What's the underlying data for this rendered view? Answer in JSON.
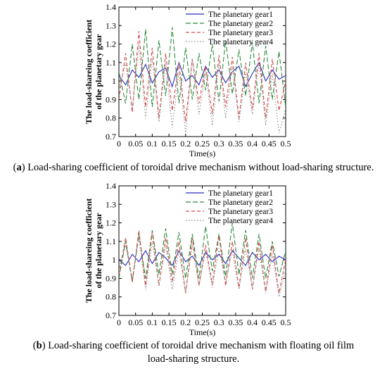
{
  "chart_data": [
    {
      "type": "line",
      "panel": "a",
      "title": "",
      "xlabel": "Time(s)",
      "ylabel": [
        "The load-shareing coefficient",
        "of the planetary gear"
      ],
      "xlim": [
        0,
        0.5
      ],
      "ylim": [
        0.7,
        1.4
      ],
      "xticks": [
        "0",
        "0.05",
        "0.1",
        "0.15",
        "0.2",
        "0.25",
        "0.3",
        "0.35",
        "0.4",
        "0.45",
        "0.5"
      ],
      "yticks": [
        "0.7",
        "0.8",
        "0.9",
        "1",
        "1.1",
        "1.2",
        "1.3",
        "1.4"
      ],
      "legend_position": "top-right",
      "grid": false,
      "series": [
        {
          "name": "The planetary gear1",
          "color": "#2b2bbf",
          "dash": "solid",
          "x": [
            0,
            0.02,
            0.04,
            0.06,
            0.08,
            0.1,
            0.12,
            0.14,
            0.16,
            0.18,
            0.2,
            0.22,
            0.24,
            0.26,
            0.28,
            0.3,
            0.32,
            0.34,
            0.36,
            0.38,
            0.4,
            0.42,
            0.44,
            0.46,
            0.48,
            0.5
          ],
          "values": [
            1.03,
            0.98,
            1.06,
            1.02,
            1.09,
            0.99,
            1.05,
            1.07,
            0.97,
            1.1,
            1.0,
            1.03,
            0.98,
            1.08,
            1.02,
            1.06,
            0.99,
            1.05,
            1.08,
            0.97,
            1.04,
            1.1,
            1.0,
            1.06,
            1.01,
            1.03
          ]
        },
        {
          "name": "The planetary gear2",
          "color": "#2e8b3e",
          "dash": "long-dash",
          "x": [
            0,
            0.02,
            0.04,
            0.06,
            0.08,
            0.1,
            0.12,
            0.14,
            0.16,
            0.18,
            0.2,
            0.22,
            0.24,
            0.26,
            0.28,
            0.3,
            0.32,
            0.34,
            0.36,
            0.38,
            0.4,
            0.42,
            0.44,
            0.46,
            0.48,
            0.5
          ],
          "values": [
            1.05,
            0.88,
            1.2,
            0.9,
            1.28,
            0.86,
            1.22,
            0.92,
            1.29,
            0.88,
            1.18,
            0.9,
            1.15,
            0.95,
            1.2,
            0.89,
            1.22,
            0.93,
            1.17,
            0.92,
            1.21,
            0.88,
            1.19,
            0.9,
            1.16,
            0.86
          ]
        },
        {
          "name": "The planetary gear3",
          "color": "#d44a4a",
          "dash": "dash",
          "x": [
            0,
            0.02,
            0.04,
            0.06,
            0.08,
            0.1,
            0.12,
            0.14,
            0.16,
            0.18,
            0.2,
            0.22,
            0.24,
            0.26,
            0.28,
            0.3,
            0.32,
            0.34,
            0.36,
            0.38,
            0.4,
            0.42,
            0.44,
            0.46,
            0.48,
            0.5
          ],
          "values": [
            0.9,
            1.15,
            0.83,
            1.27,
            0.86,
            1.18,
            0.8,
            1.15,
            0.84,
            1.1,
            0.78,
            1.12,
            0.88,
            1.08,
            0.82,
            1.14,
            0.86,
            1.13,
            0.8,
            1.1,
            0.85,
            1.15,
            0.8,
            1.12,
            0.84,
            1.0
          ]
        },
        {
          "name": "The planetary gear4",
          "color": "#888888",
          "dash": "dot",
          "x": [
            0,
            0.02,
            0.04,
            0.06,
            0.08,
            0.1,
            0.12,
            0.14,
            0.16,
            0.18,
            0.2,
            0.22,
            0.24,
            0.26,
            0.28,
            0.3,
            0.32,
            0.34,
            0.36,
            0.38,
            0.4,
            0.42,
            0.44,
            0.46,
            0.48,
            0.5
          ],
          "values": [
            0.95,
            1.1,
            0.85,
            1.2,
            0.8,
            1.12,
            0.78,
            1.1,
            0.75,
            1.05,
            0.72,
            1.12,
            0.82,
            1.05,
            0.76,
            1.1,
            0.8,
            1.08,
            0.78,
            1.05,
            0.82,
            1.1,
            0.76,
            1.04,
            0.72,
            0.85
          ]
        }
      ]
    },
    {
      "type": "line",
      "panel": "b",
      "title": "",
      "xlabel": "Time(s)",
      "ylabel": [
        "The load-shareing coefficient",
        "of the planetary gear"
      ],
      "xlim": [
        0,
        0.5
      ],
      "ylim": [
        0.7,
        1.4
      ],
      "xticks": [
        "0",
        "0.05",
        "0.1",
        "0.15",
        "0.2",
        "0.25",
        "0.3",
        "0.35",
        "0.4",
        "0.45",
        "0.5"
      ],
      "yticks": [
        "0.7",
        "0.8",
        "0.9",
        "1",
        "1.1",
        "1.2",
        "1.3",
        "1.4"
      ],
      "legend_position": "top-right",
      "grid": false,
      "series": [
        {
          "name": "The planetary gear1",
          "color": "#2b2bbf",
          "dash": "solid",
          "x": [
            0,
            0.02,
            0.04,
            0.06,
            0.08,
            0.1,
            0.12,
            0.14,
            0.16,
            0.18,
            0.2,
            0.22,
            0.24,
            0.26,
            0.28,
            0.3,
            0.32,
            0.34,
            0.36,
            0.38,
            0.4,
            0.42,
            0.44,
            0.46,
            0.48,
            0.5
          ],
          "values": [
            1.0,
            0.97,
            1.03,
            0.99,
            1.05,
            0.98,
            1.04,
            1.01,
            0.97,
            1.05,
            0.99,
            1.02,
            0.97,
            1.04,
            1.0,
            1.03,
            0.98,
            1.05,
            1.01,
            0.97,
            1.04,
            1.0,
            1.03,
            0.99,
            1.02,
            1.0
          ]
        },
        {
          "name": "The planetary gear2",
          "color": "#2e8b3e",
          "dash": "long-dash",
          "x": [
            0,
            0.02,
            0.04,
            0.06,
            0.08,
            0.1,
            0.12,
            0.14,
            0.16,
            0.18,
            0.2,
            0.22,
            0.24,
            0.26,
            0.28,
            0.3,
            0.32,
            0.34,
            0.36,
            0.38,
            0.4,
            0.42,
            0.44,
            0.46,
            0.48,
            0.5
          ],
          "values": [
            0.9,
            1.1,
            0.88,
            1.14,
            0.9,
            1.16,
            0.92,
            1.17,
            0.92,
            1.15,
            0.9,
            1.14,
            0.9,
            1.18,
            0.94,
            1.14,
            0.91,
            1.2,
            0.92,
            1.16,
            0.9,
            1.14,
            0.9,
            1.1,
            0.91,
            1.05
          ]
        },
        {
          "name": "The planetary gear3",
          "color": "#d44a4a",
          "dash": "dash",
          "x": [
            0,
            0.02,
            0.04,
            0.06,
            0.08,
            0.1,
            0.12,
            0.14,
            0.16,
            0.18,
            0.2,
            0.22,
            0.24,
            0.26,
            0.28,
            0.3,
            0.32,
            0.34,
            0.36,
            0.38,
            0.4,
            0.42,
            0.44,
            0.46,
            0.48,
            0.5
          ],
          "values": [
            0.92,
            1.12,
            0.88,
            1.16,
            0.86,
            1.15,
            0.86,
            1.12,
            0.88,
            1.1,
            0.82,
            1.12,
            0.86,
            1.08,
            0.87,
            1.13,
            0.86,
            1.1,
            0.85,
            1.12,
            0.84,
            1.1,
            0.83,
            1.08,
            0.82,
            1.0
          ]
        },
        {
          "name": "The planetary gear4",
          "color": "#888888",
          "dash": "dot",
          "x": [
            0,
            0.02,
            0.04,
            0.06,
            0.08,
            0.1,
            0.12,
            0.14,
            0.16,
            0.18,
            0.2,
            0.22,
            0.24,
            0.26,
            0.28,
            0.3,
            0.32,
            0.34,
            0.36,
            0.38,
            0.4,
            0.42,
            0.44,
            0.46,
            0.48,
            0.5
          ],
          "values": [
            0.95,
            1.08,
            0.9,
            1.12,
            0.84,
            1.1,
            0.86,
            1.08,
            0.84,
            1.05,
            0.82,
            1.08,
            0.86,
            1.05,
            0.85,
            1.06,
            0.88,
            1.05,
            0.84,
            1.06,
            0.85,
            1.06,
            0.82,
            1.03,
            0.8,
            0.95
          ]
        }
      ]
    }
  ],
  "captions": {
    "a": {
      "letter": "a",
      "text": " Load-sharing coefficient of toroidal drive mechanism without load-sharing structure."
    },
    "b": {
      "letter": "b",
      "line1_rest": " Load-sharing coefficient of toroidal drive mechanism with floating oil film",
      "line2": "load-sharing structure."
    }
  }
}
